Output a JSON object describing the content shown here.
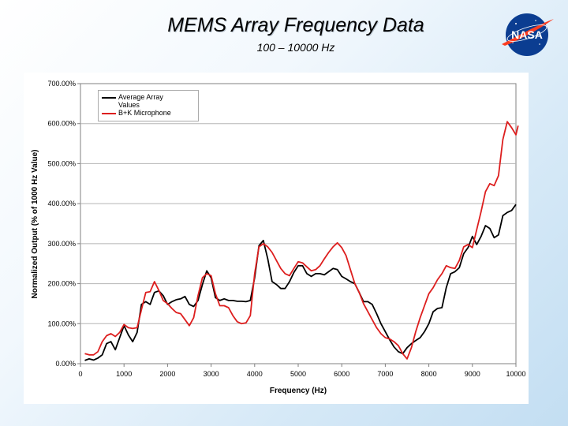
{
  "slide": {
    "title": "MEMS Array Frequency Data",
    "subtitle": "100 – 10000 Hz"
  },
  "logo": {
    "text": "NASA",
    "icon": "nasa-meatball-logo"
  },
  "colors": {
    "black_series": "#000000",
    "red_series": "#dd1e1e",
    "grid": "#b5b5b5"
  },
  "chart_data": {
    "type": "line",
    "xlabel": "Frequency (Hz)",
    "ylabel": "Normalized Output (% of 1000 Hz Value)",
    "xlim": [
      0,
      10000
    ],
    "ylim": [
      0,
      700
    ],
    "x_ticks": [
      "0",
      "1000",
      "2000",
      "3000",
      "4000",
      "5000",
      "6000",
      "7000",
      "8000",
      "9000",
      "10000"
    ],
    "y_ticks": [
      "0.00%",
      "100.00%",
      "200.00%",
      "300.00%",
      "400.00%",
      "500.00%",
      "600.00%",
      "700.00%"
    ],
    "grid": "horizontal",
    "legend_position": "top-left",
    "legend_lines": [
      "Average Array",
      "Values",
      "B+K Microphone"
    ],
    "series": [
      {
        "name": "Average Array Values",
        "color": "#000000",
        "points": [
          [
            100,
            8
          ],
          [
            200,
            12
          ],
          [
            300,
            9
          ],
          [
            400,
            14
          ],
          [
            500,
            22
          ],
          [
            600,
            50
          ],
          [
            700,
            55
          ],
          [
            800,
            35
          ],
          [
            900,
            65
          ],
          [
            1000,
            95
          ],
          [
            1100,
            72
          ],
          [
            1200,
            55
          ],
          [
            1300,
            78
          ],
          [
            1400,
            148
          ],
          [
            1500,
            155
          ],
          [
            1600,
            148
          ],
          [
            1700,
            178
          ],
          [
            1800,
            182
          ],
          [
            1900,
            170
          ],
          [
            2000,
            148
          ],
          [
            2100,
            155
          ],
          [
            2200,
            160
          ],
          [
            2300,
            162
          ],
          [
            2400,
            168
          ],
          [
            2500,
            148
          ],
          [
            2600,
            143
          ],
          [
            2700,
            158
          ],
          [
            2800,
            198
          ],
          [
            2900,
            232
          ],
          [
            3000,
            215
          ],
          [
            3100,
            165
          ],
          [
            3200,
            158
          ],
          [
            3300,
            162
          ],
          [
            3400,
            158
          ],
          [
            3500,
            158
          ],
          [
            3600,
            156
          ],
          [
            3700,
            156
          ],
          [
            3800,
            155
          ],
          [
            3900,
            158
          ],
          [
            4000,
            215
          ],
          [
            4100,
            295
          ],
          [
            4200,
            308
          ],
          [
            4300,
            262
          ],
          [
            4400,
            205
          ],
          [
            4500,
            198
          ],
          [
            4600,
            188
          ],
          [
            4700,
            188
          ],
          [
            4800,
            205
          ],
          [
            4900,
            228
          ],
          [
            5000,
            245
          ],
          [
            5100,
            245
          ],
          [
            5200,
            225
          ],
          [
            5300,
            218
          ],
          [
            5400,
            225
          ],
          [
            5500,
            225
          ],
          [
            5600,
            222
          ],
          [
            5700,
            230
          ],
          [
            5800,
            238
          ],
          [
            5900,
            235
          ],
          [
            6000,
            218
          ],
          [
            6100,
            212
          ],
          [
            6200,
            205
          ],
          [
            6300,
            200
          ],
          [
            6400,
            178
          ],
          [
            6500,
            155
          ],
          [
            6600,
            155
          ],
          [
            6700,
            148
          ],
          [
            6800,
            125
          ],
          [
            6900,
            100
          ],
          [
            7000,
            80
          ],
          [
            7100,
            60
          ],
          [
            7200,
            42
          ],
          [
            7300,
            30
          ],
          [
            7400,
            25
          ],
          [
            7500,
            40
          ],
          [
            7600,
            50
          ],
          [
            7700,
            58
          ],
          [
            7800,
            65
          ],
          [
            7900,
            80
          ],
          [
            8000,
            100
          ],
          [
            8100,
            130
          ],
          [
            8200,
            138
          ],
          [
            8300,
            140
          ],
          [
            8400,
            190
          ],
          [
            8500,
            225
          ],
          [
            8600,
            230
          ],
          [
            8700,
            240
          ],
          [
            8800,
            275
          ],
          [
            8900,
            290
          ],
          [
            9000,
            318
          ],
          [
            9100,
            298
          ],
          [
            9200,
            318
          ],
          [
            9300,
            345
          ],
          [
            9400,
            338
          ],
          [
            9500,
            315
          ],
          [
            9600,
            322
          ],
          [
            9700,
            370
          ],
          [
            9800,
            378
          ],
          [
            9900,
            383
          ],
          [
            10000,
            398
          ]
        ]
      },
      {
        "name": "B+K Microphone",
        "color": "#dd1e1e",
        "points": [
          [
            100,
            25
          ],
          [
            200,
            22
          ],
          [
            300,
            22
          ],
          [
            400,
            30
          ],
          [
            500,
            55
          ],
          [
            600,
            70
          ],
          [
            700,
            75
          ],
          [
            800,
            68
          ],
          [
            900,
            78
          ],
          [
            1000,
            98
          ],
          [
            1100,
            90
          ],
          [
            1200,
            88
          ],
          [
            1300,
            90
          ],
          [
            1400,
            135
          ],
          [
            1500,
            178
          ],
          [
            1600,
            180
          ],
          [
            1700,
            205
          ],
          [
            1800,
            183
          ],
          [
            1900,
            158
          ],
          [
            2000,
            150
          ],
          [
            2100,
            138
          ],
          [
            2200,
            128
          ],
          [
            2300,
            125
          ],
          [
            2400,
            110
          ],
          [
            2500,
            95
          ],
          [
            2600,
            115
          ],
          [
            2700,
            170
          ],
          [
            2800,
            215
          ],
          [
            2900,
            225
          ],
          [
            3000,
            220
          ],
          [
            3100,
            175
          ],
          [
            3200,
            145
          ],
          [
            3300,
            145
          ],
          [
            3400,
            140
          ],
          [
            3500,
            120
          ],
          [
            3600,
            105
          ],
          [
            3700,
            100
          ],
          [
            3800,
            102
          ],
          [
            3900,
            120
          ],
          [
            4000,
            225
          ],
          [
            4100,
            292
          ],
          [
            4200,
            300
          ],
          [
            4300,
            292
          ],
          [
            4400,
            278
          ],
          [
            4500,
            258
          ],
          [
            4600,
            238
          ],
          [
            4700,
            225
          ],
          [
            4800,
            220
          ],
          [
            4900,
            238
          ],
          [
            5000,
            255
          ],
          [
            5100,
            252
          ],
          [
            5200,
            242
          ],
          [
            5300,
            232
          ],
          [
            5400,
            235
          ],
          [
            5500,
            245
          ],
          [
            5600,
            262
          ],
          [
            5700,
            278
          ],
          [
            5800,
            292
          ],
          [
            5900,
            302
          ],
          [
            6000,
            290
          ],
          [
            6100,
            270
          ],
          [
            6200,
            235
          ],
          [
            6300,
            200
          ],
          [
            6400,
            178
          ],
          [
            6500,
            150
          ],
          [
            6600,
            130
          ],
          [
            6700,
            110
          ],
          [
            6800,
            90
          ],
          [
            6900,
            75
          ],
          [
            7000,
            65
          ],
          [
            7100,
            62
          ],
          [
            7200,
            55
          ],
          [
            7300,
            45
          ],
          [
            7400,
            25
          ],
          [
            7500,
            12
          ],
          [
            7600,
            40
          ],
          [
            7700,
            80
          ],
          [
            7800,
            115
          ],
          [
            7900,
            145
          ],
          [
            8000,
            175
          ],
          [
            8100,
            190
          ],
          [
            8200,
            210
          ],
          [
            8300,
            225
          ],
          [
            8400,
            245
          ],
          [
            8500,
            240
          ],
          [
            8600,
            238
          ],
          [
            8700,
            258
          ],
          [
            8800,
            292
          ],
          [
            8900,
            298
          ],
          [
            9000,
            290
          ],
          [
            9100,
            335
          ],
          [
            9200,
            380
          ],
          [
            9300,
            430
          ],
          [
            9400,
            450
          ],
          [
            9500,
            445
          ],
          [
            9600,
            470
          ],
          [
            9700,
            560
          ],
          [
            9800,
            605
          ],
          [
            9900,
            590
          ],
          [
            10000,
            572
          ],
          [
            10050,
            595
          ]
        ]
      }
    ]
  }
}
